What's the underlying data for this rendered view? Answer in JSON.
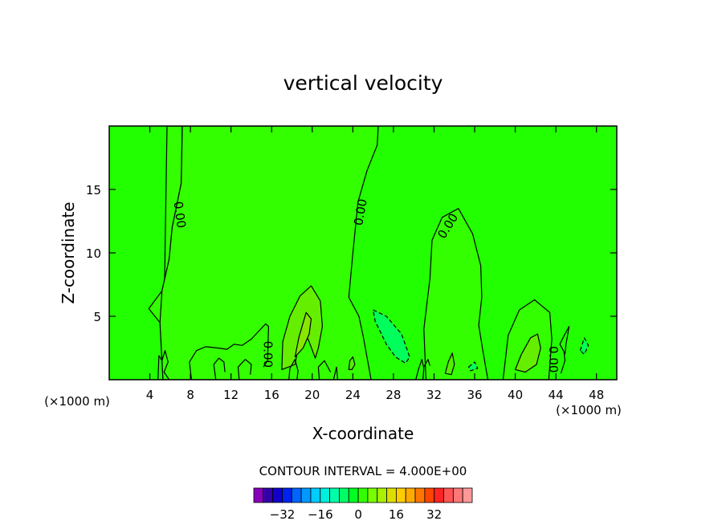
{
  "chart_data": {
    "type": "contour",
    "title": "vertical velocity",
    "xlabel": "X-coordinate",
    "ylabel": "Z-coordinate",
    "x_unit": "(×1000 m)",
    "xlim": [
      0,
      50
    ],
    "ylim": [
      0,
      20
    ],
    "x_ticks": [
      {
        "v": 4,
        "label": "4"
      },
      {
        "v": 8,
        "label": "8"
      },
      {
        "v": 12,
        "label": "12"
      },
      {
        "v": 16,
        "label": "16"
      },
      {
        "v": 20,
        "label": "20"
      },
      {
        "v": 24,
        "label": "24"
      },
      {
        "v": 28,
        "label": "28"
      },
      {
        "v": 32,
        "label": "32"
      },
      {
        "v": 36,
        "label": "36"
      },
      {
        "v": 40,
        "label": "40"
      },
      {
        "v": 44,
        "label": "44"
      },
      {
        "v": 48,
        "label": "48"
      }
    ],
    "y_ticks": [
      {
        "v": 5,
        "label": "5"
      },
      {
        "v": 10,
        "label": "10"
      },
      {
        "v": 15,
        "label": "15"
      }
    ],
    "contour_interval_text": "CONTOUR INTERVAL = 4.000E+00",
    "contour_label": "0.00",
    "regions": [
      {
        "name": "updraft-west",
        "color": "#33ff00",
        "points": [
          [
            5.7,
            20
          ],
          [
            7.2,
            20
          ],
          [
            7.1,
            15.5
          ],
          [
            6.2,
            12
          ],
          [
            5.9,
            9.5
          ],
          [
            5.2,
            7
          ],
          [
            3.9,
            5.6
          ],
          [
            5,
            4.5
          ],
          [
            5.3,
            0
          ]
        ]
      },
      {
        "name": "updraft-central",
        "color": "#33ff00",
        "points": [
          [
            7.2,
            20
          ],
          [
            26.5,
            20
          ],
          [
            26.4,
            18.5
          ],
          [
            25.4,
            16.5
          ],
          [
            24.5,
            14
          ],
          [
            24,
            10
          ],
          [
            23.6,
            6.5
          ],
          [
            24.6,
            5
          ],
          [
            25,
            3.5
          ],
          [
            25.8,
            0
          ],
          [
            5.3,
            0
          ],
          [
            5,
            4.5
          ],
          [
            5.2,
            7
          ],
          [
            5.9,
            9.5
          ],
          [
            6.2,
            12
          ],
          [
            7.1,
            15.5
          ]
        ]
      },
      {
        "name": "updraft-east",
        "color": "#33ff00",
        "points": [
          [
            31.2,
            0
          ],
          [
            31,
            4
          ],
          [
            31.6,
            8
          ],
          [
            31.8,
            11
          ],
          [
            32.8,
            12.8
          ],
          [
            34.4,
            13.5
          ],
          [
            35.8,
            11.5
          ],
          [
            36.6,
            9
          ],
          [
            36.7,
            6.5
          ],
          [
            36.4,
            4.3
          ],
          [
            36.8,
            2.3
          ],
          [
            37.3,
            0
          ]
        ]
      },
      {
        "name": "updraft-far-east",
        "color": "#33ff00",
        "points": [
          [
            38.8,
            0
          ],
          [
            39.3,
            3.5
          ],
          [
            40.4,
            5.5
          ],
          [
            41.9,
            6.3
          ],
          [
            43.4,
            5.3
          ],
          [
            43.6,
            3.2
          ],
          [
            43.3,
            0
          ]
        ]
      },
      {
        "name": "updraft-core-18km",
        "color": "#66ee00",
        "points": [
          [
            17,
            0.8
          ],
          [
            17.1,
            3
          ],
          [
            17.8,
            5
          ],
          [
            18.8,
            6.6
          ],
          [
            19.9,
            7.4
          ],
          [
            20.8,
            6.2
          ],
          [
            21,
            4.2
          ],
          [
            20.6,
            2.5
          ],
          [
            20.3,
            1.7
          ],
          [
            19.6,
            3.2
          ],
          [
            18.8,
            3.3
          ],
          [
            18.3,
            1.2
          ]
        ]
      },
      {
        "name": "updraft-core-41km",
        "color": "#66ee00",
        "points": [
          [
            40,
            0.8
          ],
          [
            40.6,
            2
          ],
          [
            41.5,
            3.3
          ],
          [
            42.2,
            3.6
          ],
          [
            42.5,
            2.5
          ],
          [
            42.1,
            1.2
          ],
          [
            41,
            0.6
          ]
        ]
      },
      {
        "name": "updraft-core-19km",
        "color": "#88e600",
        "points": [
          [
            18.3,
            1.8
          ],
          [
            18.7,
            3.4
          ],
          [
            19.4,
            5.3
          ],
          [
            19.9,
            4.8
          ],
          [
            19.7,
            3.6
          ],
          [
            19.1,
            2.5
          ]
        ]
      },
      {
        "name": "updraft-core-33km",
        "color": "#55ee00",
        "points": [
          [
            33.1,
            0.5
          ],
          [
            33.4,
            1.4
          ],
          [
            33.8,
            2.1
          ],
          [
            34,
            1.2
          ],
          [
            33.7,
            0.4
          ]
        ]
      },
      {
        "name": "updraft-core-24km",
        "color": "#55ee00",
        "points": [
          [
            23.6,
            0.8
          ],
          [
            23.7,
            1.5
          ],
          [
            24,
            1.8
          ],
          [
            24.2,
            1.2
          ],
          [
            23.9,
            0.8
          ]
        ]
      },
      {
        "name": "downdraft-27km",
        "color": "#00ff5a",
        "dashed": true,
        "points": [
          [
            26,
            5.5
          ],
          [
            27.3,
            5
          ],
          [
            28.8,
            3.6
          ],
          [
            29.6,
            1.8
          ],
          [
            29.2,
            1.3
          ],
          [
            28.2,
            1.8
          ],
          [
            27.3,
            2.8
          ],
          [
            26.2,
            4.6
          ]
        ]
      },
      {
        "name": "downdraft-36km",
        "color": "#00ff5a",
        "dashed": true,
        "points": [
          [
            35.4,
            1
          ],
          [
            36,
            1.4
          ],
          [
            36.3,
            0.9
          ],
          [
            35.6,
            0.7
          ]
        ]
      },
      {
        "name": "downdraft-46km",
        "color": "#00ff5a",
        "dashed": true,
        "points": [
          [
            46.4,
            2.3
          ],
          [
            46.8,
            3.3
          ],
          [
            47.2,
            2.7
          ],
          [
            46.8,
            2
          ]
        ]
      }
    ],
    "contour_lines": [
      [
        [
          8.1,
          0
        ],
        [
          7.9,
          1.4
        ],
        [
          8.6,
          2.3
        ],
        [
          9.5,
          2.6
        ],
        [
          10.7,
          2.5
        ],
        [
          11.6,
          2.4
        ],
        [
          12.3,
          2.8
        ],
        [
          13.1,
          2.7
        ],
        [
          14,
          3.2
        ],
        [
          15.4,
          4.4
        ],
        [
          15.7,
          4.2
        ],
        [
          15.6,
          1.5
        ],
        [
          15.2,
          1
        ]
      ],
      [
        [
          10.5,
          0
        ],
        [
          10.3,
          1.2
        ],
        [
          10.8,
          1.7
        ],
        [
          11.3,
          1.4
        ],
        [
          11.4,
          0.6
        ]
      ],
      [
        [
          12.8,
          0
        ],
        [
          12.7,
          1
        ],
        [
          13.4,
          1.6
        ],
        [
          14,
          1.2
        ],
        [
          13.9,
          0.4
        ]
      ],
      [
        [
          20.7,
          0
        ],
        [
          20.6,
          1
        ],
        [
          21.2,
          1.5
        ],
        [
          21.8,
          0.6
        ]
      ],
      [
        [
          17.7,
          0
        ],
        [
          17.8,
          0.9
        ],
        [
          18.3,
          1.6
        ],
        [
          18.6,
          0.7
        ],
        [
          18.5,
          0
        ]
      ],
      [
        [
          22.1,
          0
        ],
        [
          22.4,
          1
        ],
        [
          22.5,
          0
        ]
      ],
      [
        [
          31,
          1
        ],
        [
          31.4,
          1.6
        ],
        [
          31.6,
          1.1
        ]
      ],
      [
        [
          30.2,
          0
        ],
        [
          30.5,
          0.9
        ],
        [
          30.8,
          1.6
        ],
        [
          31,
          0.9
        ],
        [
          30.9,
          0
        ]
      ],
      [
        [
          4.8,
          0
        ],
        [
          4.9,
          1.9
        ],
        [
          5.2,
          1.5
        ],
        [
          5.5,
          2.3
        ],
        [
          5.8,
          1.4
        ],
        [
          5.4,
          0.6
        ],
        [
          5.9,
          0
        ]
      ],
      [
        [
          44.5,
          0.5
        ],
        [
          44.9,
          1.5
        ],
        [
          44.8,
          2.2
        ],
        [
          44.4,
          2.8
        ],
        [
          44.7,
          3.3
        ],
        [
          45.3,
          4.2
        ],
        [
          45,
          2.8
        ],
        [
          44.9,
          2
        ]
      ]
    ],
    "contour_labels_at": [
      {
        "x": 6.9,
        "y": 13,
        "angle": 82
      },
      {
        "x": 24.8,
        "y": 13.2,
        "angle": -80
      },
      {
        "x": 33.4,
        "y": 12.1,
        "angle": -58
      },
      {
        "x": 15.6,
        "y": 2,
        "angle": 90
      },
      {
        "x": 43.7,
        "y": 1.6,
        "angle": 90
      }
    ],
    "colorbar": {
      "colors": [
        "#8800bb",
        "#3300aa",
        "#1100cc",
        "#0022ee",
        "#0066ff",
        "#0099ff",
        "#00ccff",
        "#00eedd",
        "#00ffaa",
        "#00ff66",
        "#00ff22",
        "#33ff00",
        "#77ff00",
        "#aaf000",
        "#dddd00",
        "#ffcc00",
        "#ffaa00",
        "#ff7700",
        "#ff4400",
        "#ff2222",
        "#ff5555",
        "#ff7777",
        "#ff9999"
      ],
      "ticks": [
        {
          "v": -32,
          "label": "−32"
        },
        {
          "v": -16,
          "label": "−16"
        },
        {
          "v": 0,
          "label": "0"
        },
        {
          "v": 16,
          "label": "16"
        },
        {
          "v": 32,
          "label": "32"
        }
      ],
      "vmin": -44,
      "vmax": 48
    },
    "background_color": "#22ff00"
  }
}
